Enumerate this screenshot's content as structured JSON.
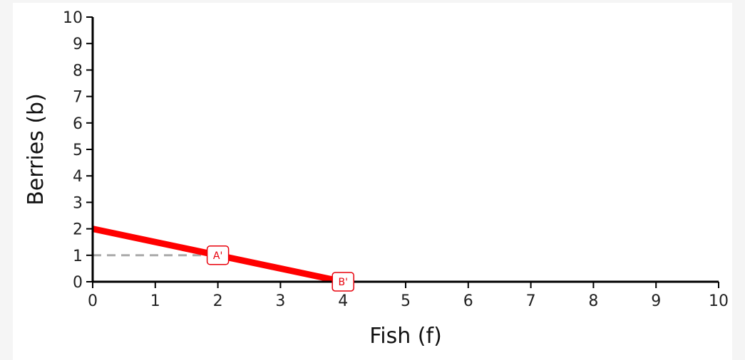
{
  "chart_data": {
    "type": "line",
    "xlabel": "Fish (f)",
    "ylabel": "Berries (b)",
    "xlim": [
      0,
      10
    ],
    "ylim": [
      0,
      10
    ],
    "x_ticks": [
      0,
      1,
      2,
      3,
      4,
      5,
      6,
      7,
      8,
      9,
      10
    ],
    "y_ticks": [
      0,
      1,
      2,
      3,
      4,
      5,
      6,
      7,
      8,
      9,
      10
    ],
    "grid": false,
    "series": [
      {
        "points": [
          {
            "x": 0,
            "y": 2
          },
          {
            "x": 4,
            "y": 0
          }
        ],
        "color": "#ff0000",
        "style": "solid"
      }
    ],
    "guides": [
      {
        "from": {
          "x": 0,
          "y": 1
        },
        "to": {
          "x": 2,
          "y": 1
        },
        "color": "#aaaaaa",
        "style": "dashed"
      }
    ],
    "annotations": [
      {
        "label": "A'",
        "x": 2,
        "y": 1,
        "color": "#e8000b"
      },
      {
        "label": "B'",
        "x": 4,
        "y": 0,
        "color": "#e8000b"
      }
    ]
  }
}
